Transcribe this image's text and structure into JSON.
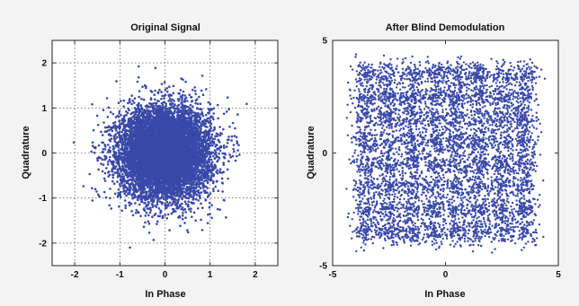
{
  "chart_data": [
    {
      "type": "scatter",
      "title": "Original Signal",
      "xlabel": "In Phase",
      "ylabel": "Quadrature",
      "xlim": [
        -2.5,
        2.5
      ],
      "ylim": [
        -2.5,
        2.5
      ],
      "xticks": [
        -2,
        -1,
        0,
        1,
        2
      ],
      "yticks": [
        -2,
        -1,
        0,
        1,
        2
      ],
      "grid": true,
      "marker_color": "#3949a8",
      "description_of_points": "dense circular Gaussian cloud centered at (0,0), std approx 0.5",
      "center": [
        0,
        0
      ],
      "spread_std": 0.5
    },
    {
      "type": "scatter",
      "title": "After Blind Demodulation",
      "xlabel": "In Phase",
      "ylabel": "Quadrature",
      "xlim": [
        -5,
        5
      ],
      "ylim": [
        -5,
        5
      ],
      "xticks": [
        -5,
        0,
        5
      ],
      "yticks": [
        -5,
        0,
        5
      ],
      "grid": false,
      "marker_color": "#3949a8",
      "constellation_levels": [
        -3.5,
        -2.5,
        -1.5,
        -0.5,
        0.5,
        1.5,
        2.5,
        3.5
      ],
      "cluster_std": 0.3
    }
  ],
  "colors": {
    "background": "#f3f3f4",
    "plot_background": "#ffffff",
    "marker": "#3949a8"
  }
}
